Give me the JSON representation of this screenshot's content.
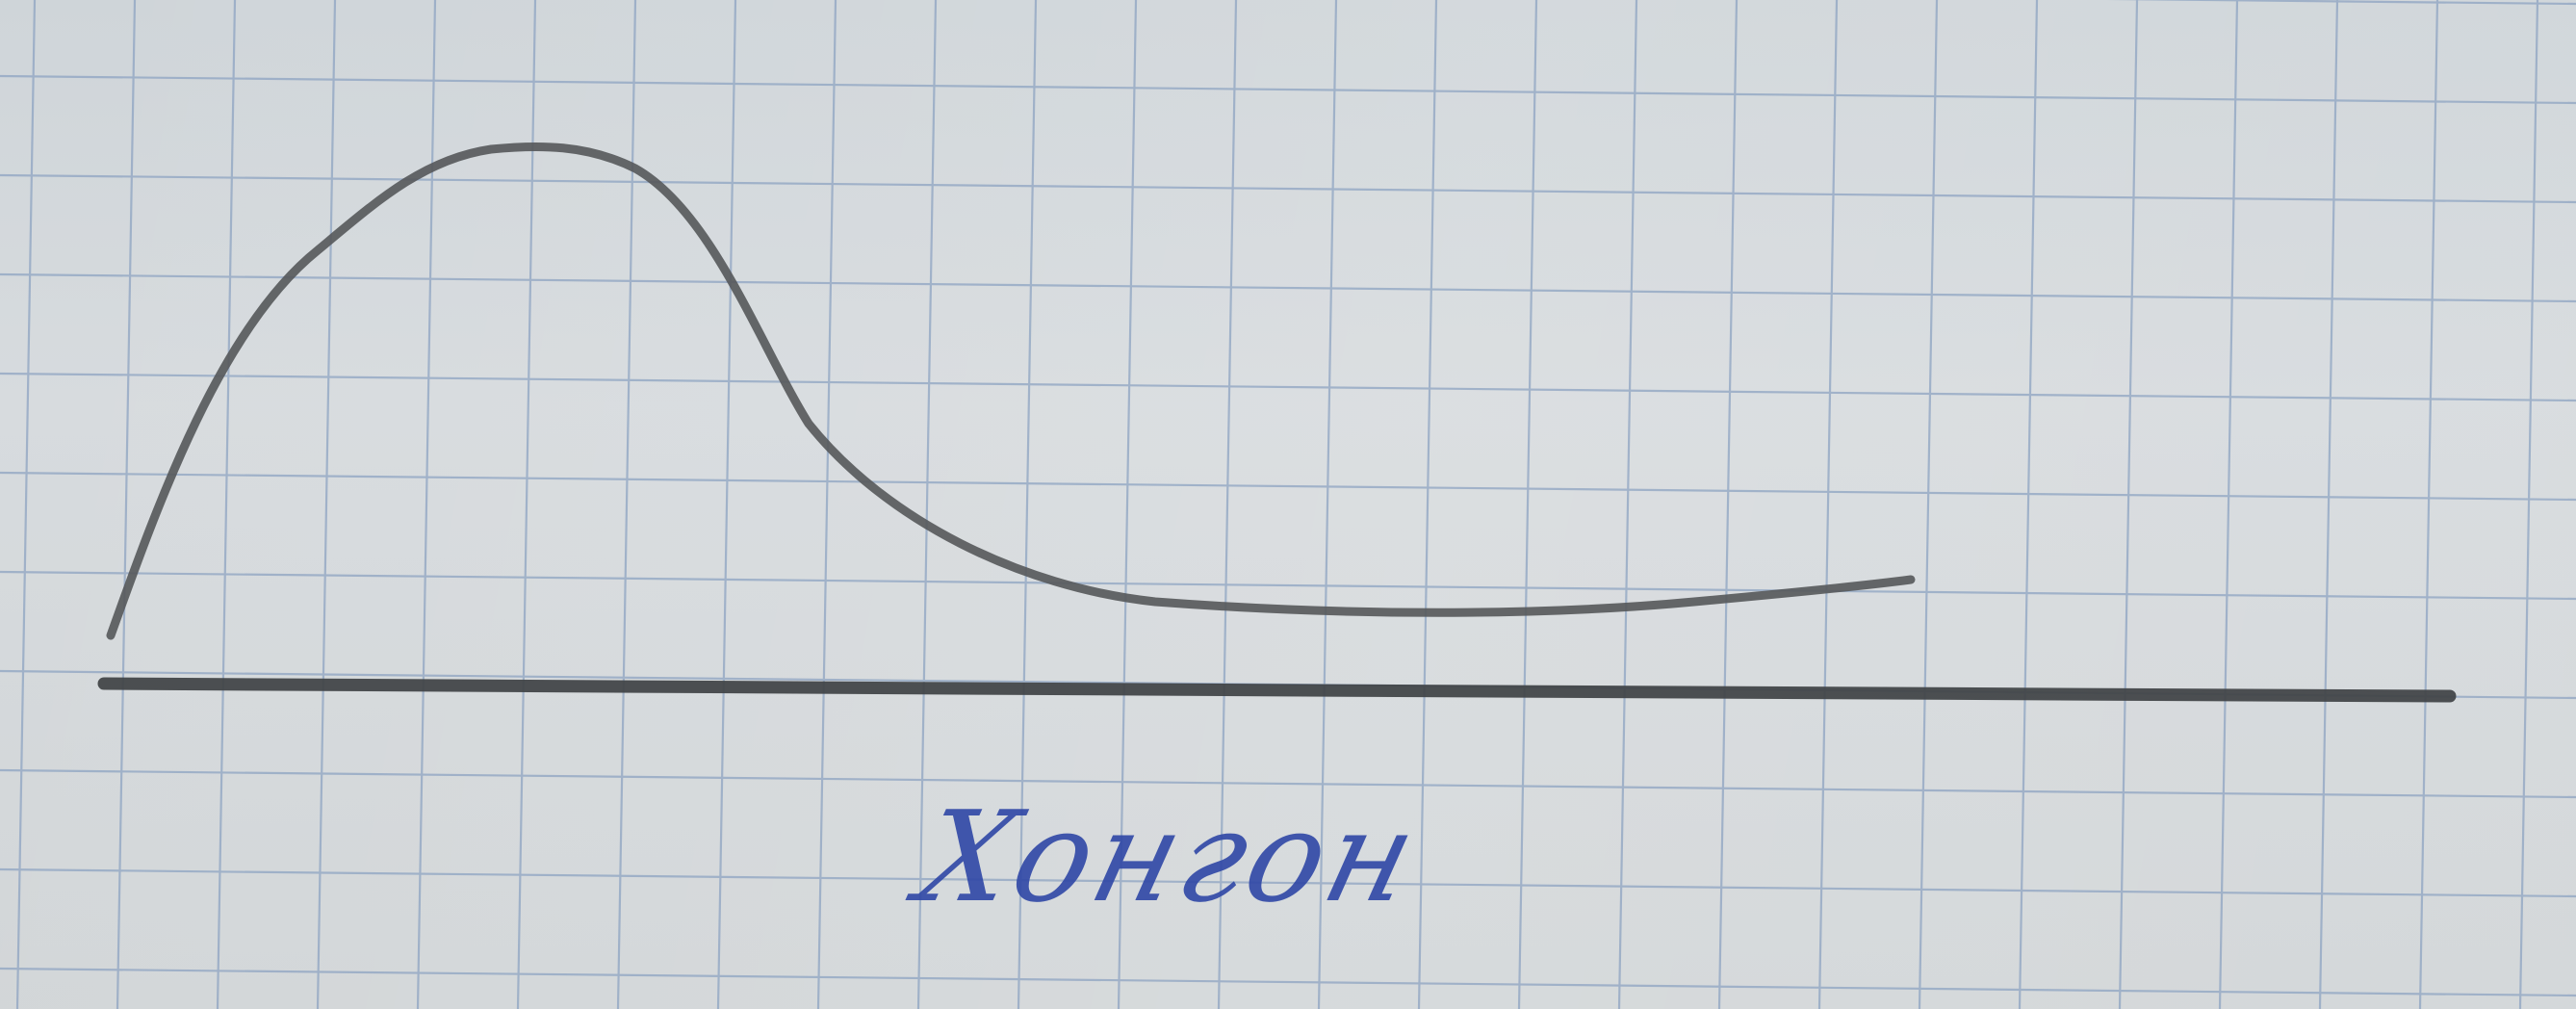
{
  "photo": {
    "handwritten_caption": "Хонгон",
    "ink_color": "#2f47a6",
    "pencil_color": "#4a4d4e",
    "paper_color": "#d4d9dc",
    "grid_line_color": "#8ea4c2"
  }
}
